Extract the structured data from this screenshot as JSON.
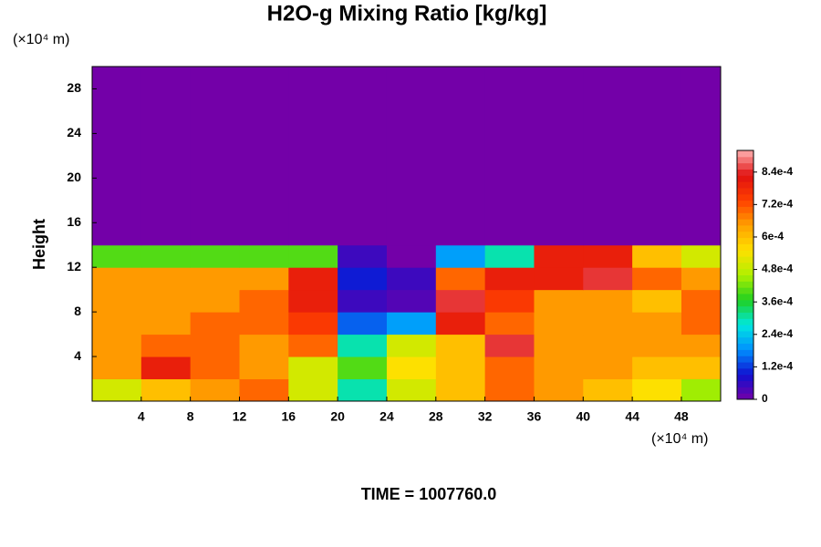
{
  "chart_data": {
    "type": "heatmap",
    "title": "H2O-g Mixing Ratio [kg/kg]",
    "ylabel": "Height",
    "xunit": "(×10⁴ m)",
    "yunit": "(×10⁴ m)",
    "footer": "TIME = 1007760.0",
    "xlim": [
      0,
      51.2
    ],
    "ylim": [
      0,
      30
    ],
    "xticks": [
      4,
      8,
      12,
      16,
      20,
      24,
      28,
      32,
      36,
      40,
      44,
      48
    ],
    "yticks": [
      4,
      8,
      12,
      16,
      20,
      24,
      28
    ],
    "xbins": [
      0,
      4,
      8,
      12,
      16,
      20,
      24,
      28,
      32,
      36,
      40,
      44,
      48,
      51.2
    ],
    "ybins": [
      0,
      2,
      4,
      6,
      8,
      10,
      12,
      14,
      30
    ],
    "z": [
      [
        0.0005,
        0.0006,
        0.00065,
        0.0007,
        0.0005,
        0.0003,
        0.0005,
        0.0006,
        0.0007,
        0.00065,
        0.0006,
        0.00055,
        0.00045
      ],
      [
        0.00065,
        0.0008,
        0.0007,
        0.00065,
        0.0005,
        0.0004,
        0.00055,
        0.0006,
        0.0007,
        0.00065,
        0.00065,
        0.0006,
        0.0006
      ],
      [
        0.00065,
        0.0007,
        0.0007,
        0.00065,
        0.0007,
        0.0003,
        0.0005,
        0.0006,
        0.00085,
        0.00065,
        0.00065,
        0.00065,
        0.00065
      ],
      [
        0.00065,
        0.00065,
        0.0007,
        0.0007,
        0.00075,
        0.00015,
        0.0002,
        0.0008,
        0.0007,
        0.00065,
        0.00065,
        0.00065,
        0.0007
      ],
      [
        0.00065,
        0.00065,
        0.00065,
        0.0007,
        0.0008,
        5e-05,
        3e-05,
        0.00085,
        0.00075,
        0.00065,
        0.00065,
        0.0006,
        0.0007
      ],
      [
        0.00065,
        0.00065,
        0.00065,
        0.00065,
        0.0008,
        0.0001,
        5e-05,
        0.0007,
        0.0008,
        0.0008,
        0.00085,
        0.0007,
        0.00065
      ],
      [
        0.0004,
        0.0004,
        0.0004,
        0.0004,
        0.0004,
        5e-05,
        0,
        0.0002,
        0.0003,
        0.0008,
        0.0008,
        0.0006,
        0.0005
      ],
      [
        0,
        0,
        0,
        0,
        0,
        0,
        0,
        0,
        0,
        0,
        0,
        0,
        0
      ]
    ],
    "clim": [
      0,
      0.00092
    ],
    "cticks": [
      0,
      {
        "value": 0.00012,
        "label": "1.2e-4"
      },
      {
        "value": 0.00024,
        "label": "2.4e-4"
      },
      {
        "value": 0.00036,
        "label": "3.6e-4"
      },
      {
        "value": 0.00048,
        "label": "4.8e-4"
      },
      {
        "value": 0.0006,
        "label": "6e-4"
      },
      {
        "value": 0.00072,
        "label": "7.2e-4"
      },
      {
        "value": 0.00084,
        "label": "8.4e-4"
      }
    ],
    "colormap": [
      "#7300a8",
      "#1010d0",
      "#0090ff",
      "#00e8e0",
      "#20d020",
      "#b0f000",
      "#ffe000",
      "#ffa000",
      "#ff4000",
      "#e01010",
      "#ffb0b0"
    ]
  }
}
